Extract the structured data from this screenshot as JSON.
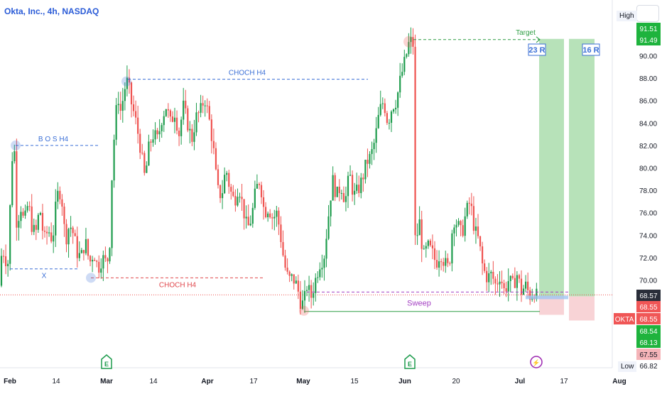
{
  "header": {
    "symbol_title": "Okta, Inc., 4h, NASDAQ",
    "high_label": "High",
    "low_label": "Low"
  },
  "colors": {
    "up": "#26a69a",
    "up_body": "#1e9c4d",
    "down": "#ef5350",
    "blue_annot": "#3b6fd6",
    "red_annot": "#e0474c",
    "purple_annot": "#a33fc2",
    "green_annot": "#2f9e44",
    "target_green": "#b7e2b9",
    "stop_red": "#f8d3d6"
  },
  "chart_data": {
    "type": "candlestick",
    "symbol": "OKTA",
    "interval": "4h",
    "y_axis": {
      "ylim": [
        65.8,
        93.3
      ],
      "ticks": [
        70.0,
        72.0,
        74.0,
        76.0,
        78.0,
        80.0,
        82.0,
        84.0,
        86.0,
        88.0,
        90.0
      ]
    },
    "x_axis": {
      "tick_labels": [
        "Feb",
        "14",
        "Mar",
        "14",
        "Apr",
        "17",
        "May",
        "15",
        "Jun",
        "20",
        "Jul",
        "17",
        "Aug"
      ]
    },
    "price_labels": [
      {
        "value": "91.51",
        "style": "green"
      },
      {
        "value": "91.49",
        "style": "green"
      },
      {
        "value": "68.57",
        "style": "dark"
      },
      {
        "value": "68.55",
        "style": "red"
      },
      {
        "value": "68.55",
        "style": "red",
        "prefix": "OKTA"
      },
      {
        "value": "68.54",
        "style": "green"
      },
      {
        "value": "68.13",
        "style": "green"
      },
      {
        "value": "67.55",
        "style": "pink"
      },
      {
        "value": "66.82",
        "style": "plain"
      }
    ],
    "key_levels": {
      "bos_high": 82.0,
      "x_low": 71.0,
      "choch_high": 87.9,
      "choch_low": 70.2,
      "target": 91.5,
      "entry": 68.55,
      "sweep_low": 67.2,
      "stop": 66.9
    },
    "annotations": [
      {
        "text": "B O S H4",
        "color": "blue"
      },
      {
        "text": "X",
        "color": "blue"
      },
      {
        "text": "CHOCH H4",
        "color": "blue"
      },
      {
        "text": "CHOCH H4",
        "color": "red"
      },
      {
        "text": "Target",
        "color": "green"
      },
      {
        "text": "Sweep",
        "color": "purple"
      },
      {
        "text": "23 R",
        "color": "blue"
      },
      {
        "text": "16 R",
        "color": "blue"
      }
    ],
    "events": [
      "E",
      "E",
      "⚡"
    ],
    "series": [
      {
        "name": "OKTA",
        "path": [
          [
            0,
            69.5
          ],
          [
            3,
            73.5
          ],
          [
            6,
            72.0
          ],
          [
            12,
            71.5
          ],
          [
            16,
            80.5
          ],
          [
            20,
            82.0
          ],
          [
            24,
            74.0
          ],
          [
            28,
            77.0
          ],
          [
            34,
            75.0
          ],
          [
            40,
            77.0
          ],
          [
            44,
            75.0
          ],
          [
            50,
            74.0
          ],
          [
            56,
            76.5
          ],
          [
            62,
            73.5
          ],
          [
            68,
            74.5
          ],
          [
            74,
            73.5
          ],
          [
            80,
            77.5
          ],
          [
            86,
            78.0
          ],
          [
            92,
            73.5
          ],
          [
            98,
            75.0
          ],
          [
            104,
            74.0
          ],
          [
            108,
            72.5
          ],
          [
            114,
            72.0
          ],
          [
            120,
            73.5
          ],
          [
            126,
            71.5
          ],
          [
            132,
            72.5
          ],
          [
            138,
            71.0
          ],
          [
            144,
            72.0
          ],
          [
            150,
            71.5
          ],
          [
            154,
            72.5
          ],
          [
            158,
            80.0
          ],
          [
            162,
            84.0
          ],
          [
            166,
            86.5
          ],
          [
            170,
            85.0
          ],
          [
            176,
            87.2
          ],
          [
            180,
            87.8
          ],
          [
            184,
            86.0
          ],
          [
            190,
            84.5
          ],
          [
            196,
            82.5
          ],
          [
            204,
            79.0
          ],
          [
            210,
            82.0
          ],
          [
            216,
            83.0
          ],
          [
            222,
            82.5
          ],
          [
            228,
            84.5
          ],
          [
            234,
            85.5
          ],
          [
            240,
            84.0
          ],
          [
            246,
            85.0
          ],
          [
            252,
            83.0
          ],
          [
            258,
            85.5
          ],
          [
            264,
            84.0
          ],
          [
            270,
            82.5
          ],
          [
            276,
            84.5
          ],
          [
            282,
            85.0
          ],
          [
            288,
            86.3
          ],
          [
            294,
            84.5
          ],
          [
            300,
            82.0
          ],
          [
            306,
            78.0
          ],
          [
            312,
            77.5
          ],
          [
            318,
            80.0
          ],
          [
            324,
            78.0
          ],
          [
            330,
            77.0
          ],
          [
            336,
            78.5
          ],
          [
            342,
            76.5
          ],
          [
            348,
            74.5
          ],
          [
            354,
            75.5
          ],
          [
            360,
            78.0
          ],
          [
            366,
            79.0
          ],
          [
            372,
            76.0
          ],
          [
            378,
            76.5
          ],
          [
            384,
            75.5
          ],
          [
            390,
            76.0
          ],
          [
            396,
            73.5
          ],
          [
            400,
            71.5
          ],
          [
            406,
            70.0
          ],
          [
            412,
            70.2
          ],
          [
            418,
            69.5
          ],
          [
            424,
            67.8
          ],
          [
            428,
            68.0
          ],
          [
            432,
            69.5
          ],
          [
            438,
            68.5
          ],
          [
            444,
            70.0
          ],
          [
            450,
            71.5
          ],
          [
            456,
            72.0
          ],
          [
            462,
            75.5
          ],
          [
            468,
            79.0
          ],
          [
            474,
            77.5
          ],
          [
            480,
            78.5
          ],
          [
            486,
            77.0
          ],
          [
            492,
            79.5
          ],
          [
            498,
            77.5
          ],
          [
            504,
            78.0
          ],
          [
            510,
            79.0
          ],
          [
            516,
            80.5
          ],
          [
            522,
            81.0
          ],
          [
            528,
            82.5
          ],
          [
            534,
            85.0
          ],
          [
            540,
            86.0
          ],
          [
            546,
            84.0
          ],
          [
            552,
            85.5
          ],
          [
            558,
            86.0
          ],
          [
            564,
            88.0
          ],
          [
            570,
            89.5
          ],
          [
            576,
            91.2
          ],
          [
            580,
            91.3
          ],
          [
            584,
            90.5
          ],
          [
            585,
            74.0
          ],
          [
            590,
            75.5
          ],
          [
            596,
            72.0
          ],
          [
            602,
            73.0
          ],
          [
            608,
            72.5
          ],
          [
            614,
            71.5
          ],
          [
            620,
            72.5
          ],
          [
            626,
            71.5
          ],
          [
            632,
            71.0
          ],
          [
            638,
            75.5
          ],
          [
            644,
            75.0
          ],
          [
            650,
            74.0
          ],
          [
            656,
            76.0
          ],
          [
            662,
            77.0
          ],
          [
            668,
            74.5
          ],
          [
            674,
            73.5
          ],
          [
            680,
            71.0
          ],
          [
            686,
            70.2
          ],
          [
            692,
            70.5
          ],
          [
            698,
            69.5
          ],
          [
            704,
            70.5
          ],
          [
            710,
            69.0
          ],
          [
            716,
            70.0
          ],
          [
            722,
            69.5
          ],
          [
            728,
            70.5
          ],
          [
            734,
            69.0
          ],
          [
            740,
            69.5
          ],
          [
            746,
            68.6
          ],
          [
            752,
            69.0
          ],
          [
            756,
            68.5
          ]
        ]
      }
    ]
  }
}
